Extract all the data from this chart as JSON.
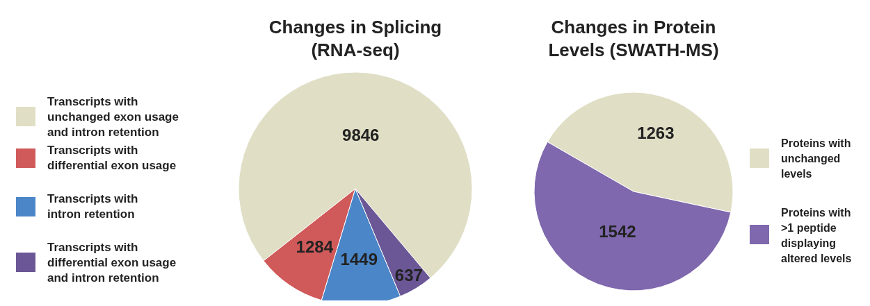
{
  "chart_data": [
    {
      "type": "pie",
      "title": "Changes in Splicing\n(RNA-seq)",
      "categories": [
        "Transcripts with\nunchanged exon usage\nand intron retention",
        "Transcripts with\ndifferential exon usage",
        "Transcripts with\nintron retention",
        "Transcripts with\ndifferential exon usage\nand intron retention"
      ],
      "values": [
        9846,
        1284,
        1449,
        637
      ],
      "colors": [
        "#e0dfc6",
        "#d05a5a",
        "#4a86c8",
        "#6b5796"
      ],
      "data_labels": true,
      "legend": "left"
    },
    {
      "type": "pie",
      "title": "Changes in Protein\nLevels  (SWATH-MS)",
      "categories": [
        "Proteins with\nunchanged\nlevels",
        "Proteins with\n>1 peptide\ndisplaying\naltered levels"
      ],
      "values": [
        1263,
        1542
      ],
      "colors": [
        "#e0dfc6",
        "#7f68ad"
      ],
      "data_labels": true,
      "legend": "right"
    }
  ]
}
